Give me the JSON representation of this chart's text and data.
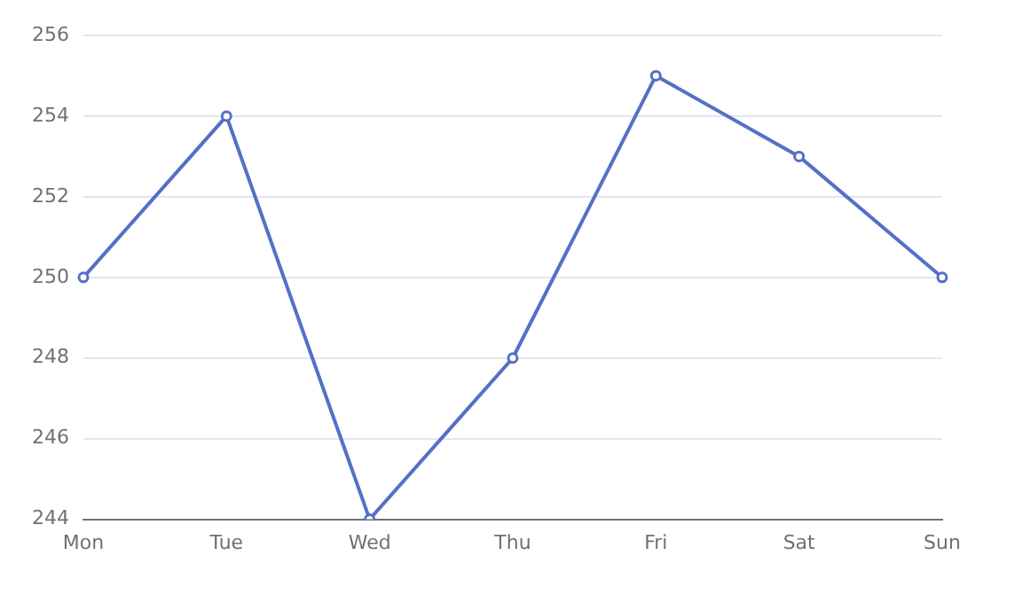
{
  "chart_data": {
    "type": "line",
    "categories": [
      "Mon",
      "Tue",
      "Wed",
      "Thu",
      "Fri",
      "Sat",
      "Sun"
    ],
    "values": [
      250,
      254,
      244,
      248,
      255,
      253,
      250
    ],
    "color": "#5470c6",
    "ylim": [
      244,
      256
    ],
    "yticks": [
      244,
      246,
      248,
      250,
      252,
      254,
      256
    ],
    "grid": "y",
    "marker": "circle"
  }
}
